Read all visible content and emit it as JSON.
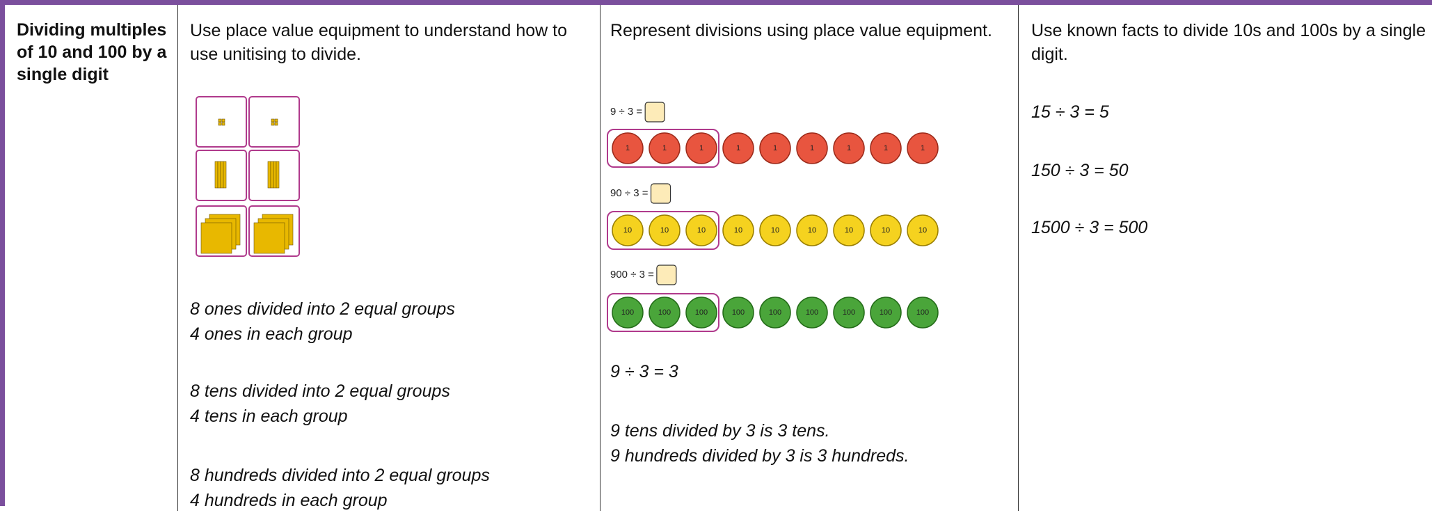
{
  "table": {
    "columns": [
      {
        "title": "Dividing multiples of 10 and 100 by a single digit"
      },
      {
        "intro": "Use place value equipment to understand how to use unitising to divide.",
        "notes": [
          [
            "8 ones divided into 2 equal groups",
            "4 ones in each group"
          ],
          [
            "8 tens divided into 2 equal groups",
            "4 tens in each group"
          ],
          [
            "8 hundreds divided into 2 equal groups",
            "4 hundreds in each group"
          ]
        ]
      },
      {
        "intro": "Represent divisions using place value equipment.",
        "models": [
          {
            "equation": "9 ÷ 3 =",
            "counters": [
              "1",
              "1",
              "1",
              "1",
              "1",
              "1",
              "1",
              "1",
              "1"
            ]
          },
          {
            "equation": "90 ÷ 3 =",
            "counters": [
              "10",
              "10",
              "10",
              "10",
              "10",
              "10",
              "10",
              "10",
              "10"
            ]
          },
          {
            "equation": "900 ÷ 3 =",
            "counters": [
              "100",
              "100",
              "100",
              "100",
              "100",
              "100",
              "100",
              "100",
              "100"
            ]
          }
        ],
        "equation": "9 ÷ 3 = 3",
        "notes": [
          "9 tens divided by 3 is 3 tens.",
          "9 hundreds divided by 3 is 3 hundreds."
        ]
      },
      {
        "intro": "Use known facts to divide 10s and 100s by a single digit.",
        "facts": [
          "15 ÷ 3 = 5",
          "150 ÷ 3 = 50",
          "1500 ÷ 3 = 500"
        ]
      }
    ]
  }
}
